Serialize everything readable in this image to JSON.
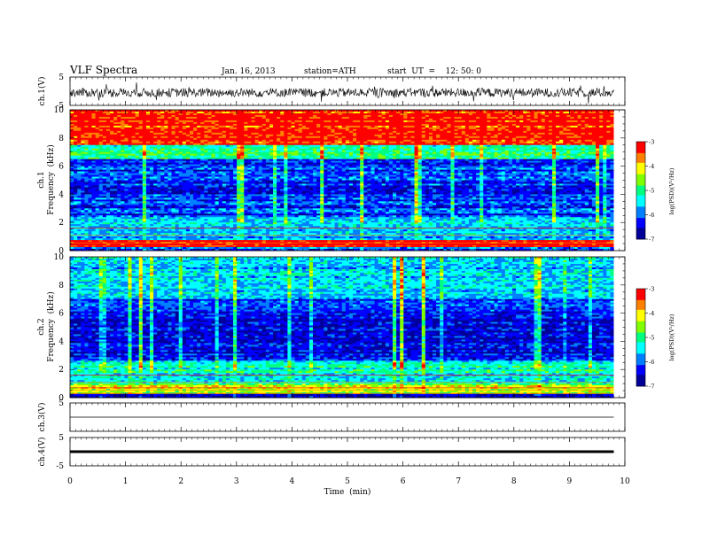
{
  "header": {
    "title": "VLF  Spectra",
    "date": "Jan. 16, 2013",
    "station": "station=ATH",
    "start": "start  UT  =    12: 50: 0"
  },
  "colors": {
    "scale": [
      "#000099",
      "#0000ff",
      "#0080ff",
      "#00ffff",
      "#00ff80",
      "#80ff00",
      "#ffff00",
      "#ff8000",
      "#ff0000",
      "#ffffff"
    ]
  },
  "chart_data": [
    {
      "id": "ch1-waveform",
      "type": "line",
      "ylabel": "ch.1(V)",
      "ylim": [
        -5,
        5
      ],
      "yticks": [
        "5",
        "-5"
      ],
      "trace": "dense noise centred near -0.5 V, amplitude about +/-2 V with spikes to +/-4 V"
    },
    {
      "id": "ch1-spectrogram",
      "type": "heatmap",
      "ylabel_channel": "ch.1",
      "ylabel": "Frequency  (kHz)",
      "ylim": [
        0,
        10
      ],
      "yticks": [
        "0",
        "2",
        "4",
        "6",
        "8",
        "10"
      ],
      "colorbar": {
        "label": "log(PSD)(V²/Hz)",
        "range": [
          -7,
          -3
        ],
        "ticks": [
          "-3",
          "-4",
          "-5",
          "-6",
          "-7"
        ]
      },
      "bands_log_psd": [
        {
          "f": [
            0,
            0.3
          ],
          "v": -6.0
        },
        {
          "f": [
            0.3,
            0.8
          ],
          "v": -3.3
        },
        {
          "f": [
            0.8,
            2.4
          ],
          "v": -5.7
        },
        {
          "f": [
            2.4,
            6.5
          ],
          "v": -6.2
        },
        {
          "f": [
            6.5,
            7.5
          ],
          "v": -5.0
        },
        {
          "f": [
            7.5,
            10
          ],
          "v": -3.3
        }
      ]
    },
    {
      "id": "ch2-spectrogram",
      "type": "heatmap",
      "ylabel_channel": "ch.2",
      "ylabel": "Frequency  (kHz)",
      "ylim": [
        0,
        10
      ],
      "yticks": [
        "0",
        "2",
        "4",
        "6",
        "8",
        "10"
      ],
      "colorbar": {
        "label": "log(PSD)(V²/Hz)",
        "range": [
          -7,
          -3
        ],
        "ticks": [
          "-3",
          "-4",
          "-5",
          "-6",
          "-7"
        ]
      },
      "bands_log_psd": [
        {
          "f": [
            0,
            0.3
          ],
          "v": -6.5
        },
        {
          "f": [
            0.3,
            1.0
          ],
          "v": -4.4
        },
        {
          "f": [
            1.0,
            2.6
          ],
          "v": -5.3
        },
        {
          "f": [
            2.6,
            6.0
          ],
          "v": -6.5
        },
        {
          "f": [
            6.0,
            7.0
          ],
          "v": -6.2
        },
        {
          "f": [
            7.0,
            10
          ],
          "v": -5.6
        }
      ]
    },
    {
      "id": "ch3-waveform",
      "type": "line",
      "ylabel": "ch.3(V)",
      "ylim": [
        -5,
        5
      ],
      "yticks": [
        "5"
      ],
      "trace": "flat near 0 V"
    },
    {
      "id": "ch4-waveform",
      "type": "line",
      "ylabel": "ch.4(V)",
      "ylim": [
        -5,
        5
      ],
      "yticks": [
        "5",
        "-5"
      ],
      "trace": "thick flat line near 0 V"
    }
  ],
  "xaxis": {
    "label": "Time  (min)",
    "range": [
      0,
      10
    ],
    "ticks": [
      "0",
      "1",
      "2",
      "3",
      "4",
      "5",
      "6",
      "7",
      "8",
      "9",
      "10"
    ],
    "data_end_min": 9.8
  }
}
